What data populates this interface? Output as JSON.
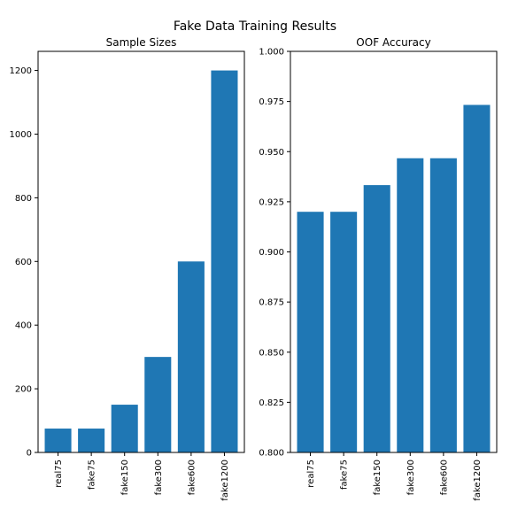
{
  "figure": {
    "title": "Fake Data Training Results"
  },
  "chart_data": [
    {
      "type": "bar",
      "title": "Sample Sizes",
      "xlabel": "",
      "ylabel": "",
      "categories": [
        "real75",
        "fake75",
        "fake150",
        "fake300",
        "fake600",
        "fake1200"
      ],
      "values": [
        75,
        75,
        150,
        300,
        600,
        1200
      ],
      "ylim": [
        0,
        1260
      ],
      "yticks": [
        0,
        200,
        400,
        600,
        800,
        1000,
        1200
      ],
      "ytick_labels": [
        "0",
        "200",
        "400",
        "600",
        "800",
        "1000",
        "1200"
      ],
      "color": "#1f77b4",
      "grid": false
    },
    {
      "type": "bar",
      "title": "OOF Accuracy",
      "xlabel": "",
      "ylabel": "",
      "categories": [
        "real75",
        "fake75",
        "fake150",
        "fake300",
        "fake600",
        "fake1200"
      ],
      "values": [
        0.92,
        0.92,
        0.9333,
        0.9467,
        0.9467,
        0.9733
      ],
      "ylim": [
        0.8,
        1.0
      ],
      "yticks": [
        0.8,
        0.825,
        0.85,
        0.875,
        0.9,
        0.925,
        0.95,
        0.975,
        1.0
      ],
      "ytick_labels": [
        "0.800",
        "0.825",
        "0.850",
        "0.875",
        "0.900",
        "0.925",
        "0.950",
        "0.975",
        "1.000"
      ],
      "color": "#1f77b4",
      "grid": false
    }
  ]
}
